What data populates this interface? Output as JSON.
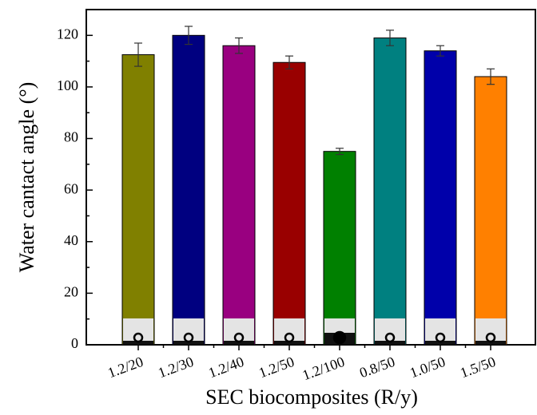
{
  "chart_data": {
    "type": "bar",
    "x_label": "SEC biocomposites (R/y)",
    "y_label": "Water cantact angle (°)",
    "categories": [
      "1.2/20",
      "1.2/30",
      "1.2/40",
      "1.2/50",
      "1.2/100",
      "0.8/50",
      "1.0/50",
      "1.5/50"
    ],
    "values": [
      112.5,
      120,
      116,
      109.5,
      75,
      119,
      114,
      104
    ],
    "errors": [
      4.5,
      3.5,
      3,
      2.5,
      1.2,
      3,
      2,
      3
    ],
    "colors": [
      "#808000",
      "#000080",
      "#990080",
      "#990000",
      "#008000",
      "#008080",
      "#0000aa",
      "#ff8000"
    ],
    "ylim": [
      0,
      130
    ],
    "yticks": [
      0,
      20,
      40,
      60,
      80,
      100,
      120
    ],
    "grid": false
  }
}
